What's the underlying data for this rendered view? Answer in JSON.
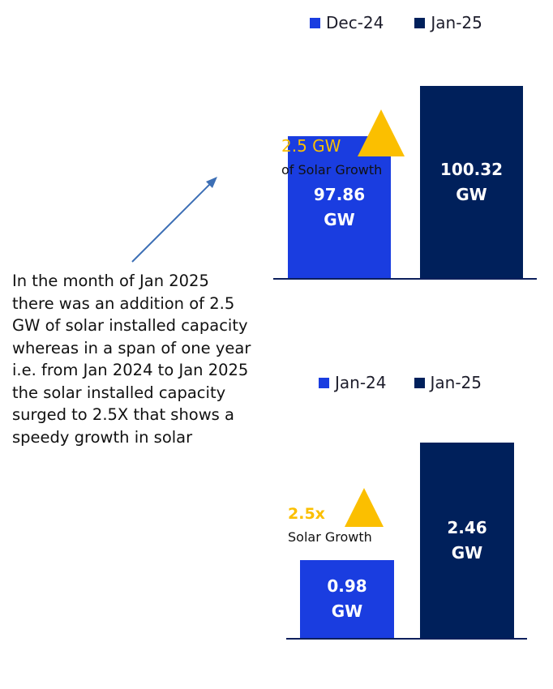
{
  "colors": {
    "dec24": "#1a3de0",
    "jan25": "#00205b",
    "accent": "#fbbf00",
    "arrow": "#3d6fb5",
    "axis": "#0c1f5c"
  },
  "chart_data": [
    {
      "type": "bar",
      "categories": [
        "Dec-24",
        "Jan-25"
      ],
      "values": [
        97.86,
        100.32
      ],
      "unit": "GW",
      "bar_labels": [
        {
          "value": "97.86",
          "unit": "GW"
        },
        {
          "value": "100.32",
          "unit": "GW"
        }
      ],
      "legend": [
        "Dec-24",
        "Jan-25"
      ],
      "legend_position": "top",
      "callout": {
        "value": "2.5 GW",
        "label": "of Solar Growth"
      },
      "ylim": [
        91,
        102
      ],
      "grid": false
    },
    {
      "type": "bar",
      "categories": [
        "Jan-24",
        "Jan-25"
      ],
      "values": [
        0.98,
        2.46
      ],
      "unit": "GW",
      "bar_labels": [
        {
          "value": "0.98",
          "unit": "GW"
        },
        {
          "value": "2.46",
          "unit": "GW"
        }
      ],
      "legend": [
        "Jan-24",
        "Jan-25"
      ],
      "legend_position": "top",
      "callout": {
        "value": "2.5x",
        "label": "Solar Growth"
      },
      "ylim": [
        0,
        2.7
      ],
      "grid": false
    }
  ],
  "note": "In the month of Jan 2025 there was an addition of 2.5 GW of solar installed capacity whereas in a span of one year i.e. from Jan 2024 to Jan 2025 the solar installed capacity surged to 2.5X that shows a speedy growth in solar"
}
